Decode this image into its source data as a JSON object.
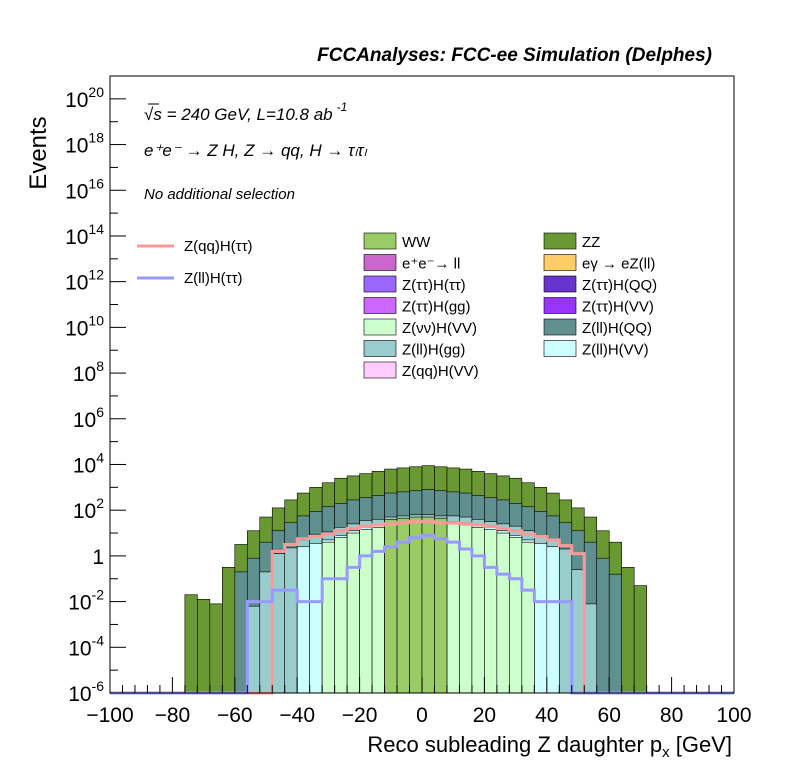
{
  "header": {
    "title": "FCCAnalyses: FCC-ee Simulation (Delphes)"
  },
  "annotations": {
    "sqrt_s": "240 GeV",
    "lumi": "L=10.8 ab",
    "lumi_exp": "-1",
    "process": "e⁺e⁻ → Z H, Z → qq, H → τₗτₗ",
    "selection": "No additional selection"
  },
  "axes": {
    "xlabel": "Reco subleading Z daughter p",
    "xlabel_sub": "x",
    "xlabel_unit": " [GeV]",
    "ylabel": "Events"
  },
  "colors": {
    "ZZ": "#6a9933",
    "ZllHQQ": "#5f8f8f",
    "ZllHgg": "#99cccc",
    "ZllHVV": "#ccffff",
    "ZvvHVV": "#ccffcc",
    "WW": "#99cc66",
    "eeToll": "#cc66cc",
    "eyToeZ": "#ffcc66",
    "ZqqHVV": "#ffccff",
    "ZttHQQ": "#6633cc",
    "ZttHVV": "#9933ff",
    "ZttHtt": "#9966ff",
    "ZttHgg": "#cc66ff",
    "ZqqHtt": "#ff9999",
    "ZllHtt": "#9999ff"
  },
  "chart_data": {
    "type": "area",
    "title": "FCCAnalyses: FCC-ee Simulation (Delphes)",
    "xlabel": "Reco subleading Z daughter p_x [GeV]",
    "ylabel": "Events",
    "xlim": [
      -100,
      100
    ],
    "ylim": [
      1e-06,
      1e+21
    ],
    "ylog": true,
    "grid": false,
    "legend_placement": "top",
    "x_ticks": [
      "−100",
      "−80",
      "−60",
      "−40",
      "−20",
      "0",
      "20",
      "40",
      "60",
      "80",
      "100"
    ],
    "y_ticks": [
      {
        "base": "10",
        "exp": "20"
      },
      {
        "base": "10",
        "exp": "18"
      },
      {
        "base": "10",
        "exp": "16"
      },
      {
        "base": "10",
        "exp": "14"
      },
      {
        "base": "10",
        "exp": "12"
      },
      {
        "base": "10",
        "exp": "10"
      },
      {
        "base": "10",
        "exp": "8"
      },
      {
        "base": "10",
        "exp": "6"
      },
      {
        "base": "10",
        "exp": "4"
      },
      {
        "base": "10",
        "exp": "2"
      },
      {
        "base": "1",
        "exp": ""
      },
      {
        "base": "10",
        "exp": "-2"
      },
      {
        "base": "10",
        "exp": "-4"
      },
      {
        "base": "10",
        "exp": "-6"
      }
    ],
    "y_tick_exponents": [
      20,
      18,
      16,
      14,
      12,
      10,
      8,
      6,
      4,
      2,
      0,
      -2,
      -4,
      -6
    ],
    "bin_edges_range": [
      -100,
      100
    ],
    "bin_width": 4,
    "stack_levels_log10": [
      {
        "name": "ZZ",
        "values": [
          -6,
          -6,
          -6,
          -6,
          -6,
          -6,
          -1.7,
          -1.9,
          -2.1,
          -0.5,
          0.5,
          1.1,
          1.7,
          2.1,
          2.45,
          2.75,
          3.0,
          3.2,
          3.4,
          3.5,
          3.6,
          3.7,
          3.8,
          3.85,
          3.9,
          3.95,
          3.9,
          3.85,
          3.8,
          3.7,
          3.6,
          3.5,
          3.4,
          3.2,
          3.0,
          2.75,
          2.45,
          2.1,
          1.7,
          1.1,
          0.6,
          -0.5,
          -1.3,
          -6,
          -6,
          -6,
          -6,
          -6,
          -6,
          -6
        ]
      },
      {
        "name": "Z(ll)H(QQ)",
        "values": [
          -6,
          -6,
          -6,
          -6,
          -6,
          -6,
          -6,
          -6,
          -6,
          -6,
          -0.7,
          -0.1,
          0.6,
          1.1,
          1.45,
          1.75,
          1.95,
          2.15,
          2.3,
          2.45,
          2.55,
          2.65,
          2.75,
          2.8,
          2.85,
          2.9,
          2.85,
          2.8,
          2.75,
          2.65,
          2.55,
          2.45,
          2.3,
          2.15,
          1.95,
          1.75,
          1.45,
          1.1,
          0.6,
          -0.1,
          -0.8,
          -6,
          -6,
          -6,
          -6,
          -6,
          -6,
          -6,
          -6,
          -6
        ]
      },
      {
        "name": "Z(ll)H(gg)",
        "values": [
          -6,
          -6,
          -6,
          -6,
          -6,
          -6,
          -6,
          -6,
          -6,
          -6,
          -6,
          -2.2,
          -0.7,
          0.1,
          0.35,
          0.7,
          0.95,
          1.05,
          1.25,
          1.4,
          1.55,
          1.6,
          1.7,
          1.75,
          1.8,
          1.8,
          1.75,
          1.75,
          1.7,
          1.6,
          1.5,
          1.4,
          1.3,
          1.1,
          0.9,
          0.75,
          0.3,
          -0.6,
          -2.1,
          -6,
          -6,
          -6,
          -6,
          -6,
          -6,
          -6,
          -6,
          -6,
          -6,
          -6
        ]
      },
      {
        "name": "Z(ll)H(VV)",
        "values": [
          -6,
          -6,
          -6,
          -6,
          -6,
          -6,
          -6,
          -6,
          -6,
          -6,
          -6,
          -6,
          -6,
          -6,
          -6,
          0.4,
          0.55,
          0.7,
          0.9,
          1.1,
          1.25,
          1.35,
          1.45,
          1.5,
          1.55,
          1.55,
          1.5,
          1.5,
          1.45,
          1.35,
          1.25,
          1.1,
          0.9,
          0.7,
          0.55,
          0.4,
          -6,
          -6,
          -6,
          -6,
          -6,
          -6,
          -6,
          -6,
          -6,
          -6,
          -6,
          -6,
          -6,
          -6
        ]
      },
      {
        "name": "Z(νν)H(VV)",
        "values": [
          -6,
          -6,
          -6,
          -6,
          -6,
          -6,
          -6,
          -6,
          -6,
          -6,
          -6,
          -6,
          -6,
          -6,
          -6,
          -6,
          -6,
          0.6,
          0.8,
          1.0,
          1.15,
          1.25,
          1.35,
          1.4,
          1.45,
          1.45,
          1.4,
          1.4,
          1.35,
          1.25,
          1.15,
          1.0,
          0.8,
          0.6,
          -6,
          -6,
          -6,
          -6,
          -6,
          -6,
          -6,
          -6,
          -6,
          -6,
          -6,
          -6,
          -6,
          -6,
          -6,
          -6
        ]
      },
      {
        "name": "WW",
        "values": [
          -6,
          -6,
          -6,
          -6,
          -6,
          -6,
          -6,
          -6,
          -6,
          -6,
          -6,
          -6,
          -6,
          -6,
          -6,
          -6,
          -6,
          -6,
          -6,
          -6,
          -6,
          -6,
          1.6,
          1.65,
          1.7,
          1.7,
          1.65,
          -6,
          -6,
          -6,
          -6,
          -6,
          -6,
          -6,
          -6,
          -6,
          -6,
          -6,
          -6,
          -6,
          -6,
          -6,
          -6,
          -6,
          -6,
          -6,
          -6,
          -6,
          -6,
          -6
        ]
      }
    ],
    "line_series": [
      {
        "name": "Z(qq)H(ττ)",
        "color": "#ff9999",
        "values": [
          -6,
          -6,
          -6,
          -6,
          -6,
          -6,
          -6,
          -6,
          -6,
          -6,
          -6,
          -6,
          -6,
          0.2,
          0.5,
          0.75,
          0.85,
          0.95,
          1.1,
          1.2,
          1.3,
          1.35,
          1.4,
          1.45,
          1.5,
          1.5,
          1.45,
          1.45,
          1.4,
          1.35,
          1.3,
          1.2,
          1.1,
          0.95,
          0.85,
          0.7,
          0.45,
          0.1,
          -6,
          -6,
          -6,
          -6,
          -6,
          -6,
          -6,
          -6,
          -6,
          -6,
          -6,
          -6
        ]
      },
      {
        "name": "Z(ll)H(ττ)",
        "color": "#9999ff",
        "values": [
          -6,
          -6,
          -6,
          -6,
          -6,
          -6,
          -6,
          -6,
          -6,
          -6,
          -6,
          -2.0,
          -2.0,
          -1.5,
          -1.5,
          -2.0,
          -2.0,
          -1.0,
          -1.0,
          -0.5,
          0.0,
          0.2,
          0.4,
          0.6,
          0.8,
          0.9,
          0.75,
          0.6,
          0.3,
          0.0,
          -0.5,
          -0.8,
          -1.0,
          -1.5,
          -2.0,
          -2.0,
          -2.0,
          -6,
          -6,
          -6,
          -6,
          -6,
          -6,
          -6,
          -6,
          -6,
          -6,
          -6,
          -6,
          -6
        ]
      }
    ],
    "legend_lines": [
      {
        "label": "Z(qq)H(ττ)",
        "color_key": "ZqqHtt"
      },
      {
        "label": "Z(ll)H(ττ)",
        "color_key": "ZllHtt"
      }
    ],
    "legend_fills": [
      {
        "label": "WW",
        "color_key": "WW"
      },
      {
        "label": "ZZ",
        "color_key": "ZZ"
      },
      {
        "label": "e⁺e⁻→ ll",
        "color_key": "eeToll"
      },
      {
        "label": "eγ → eZ(ll)",
        "color_key": "eyToeZ"
      },
      {
        "label": "Z(ττ)H(ττ)",
        "color_key": "ZttHtt"
      },
      {
        "label": "Z(ττ)H(QQ)",
        "color_key": "ZttHQQ"
      },
      {
        "label": "Z(ττ)H(gg)",
        "color_key": "ZttHgg"
      },
      {
        "label": "Z(ττ)H(VV)",
        "color_key": "ZttHVV"
      },
      {
        "label": "Z(νν)H(VV)",
        "color_key": "ZvvHVV"
      },
      {
        "label": "Z(ll)H(QQ)",
        "color_key": "ZllHQQ"
      },
      {
        "label": "Z(ll)H(gg)",
        "color_key": "ZllHgg"
      },
      {
        "label": "Z(ll)H(VV)",
        "color_key": "ZllHVV"
      },
      {
        "label": "Z(qq)H(VV)",
        "color_key": "ZqqHVV"
      }
    ]
  }
}
